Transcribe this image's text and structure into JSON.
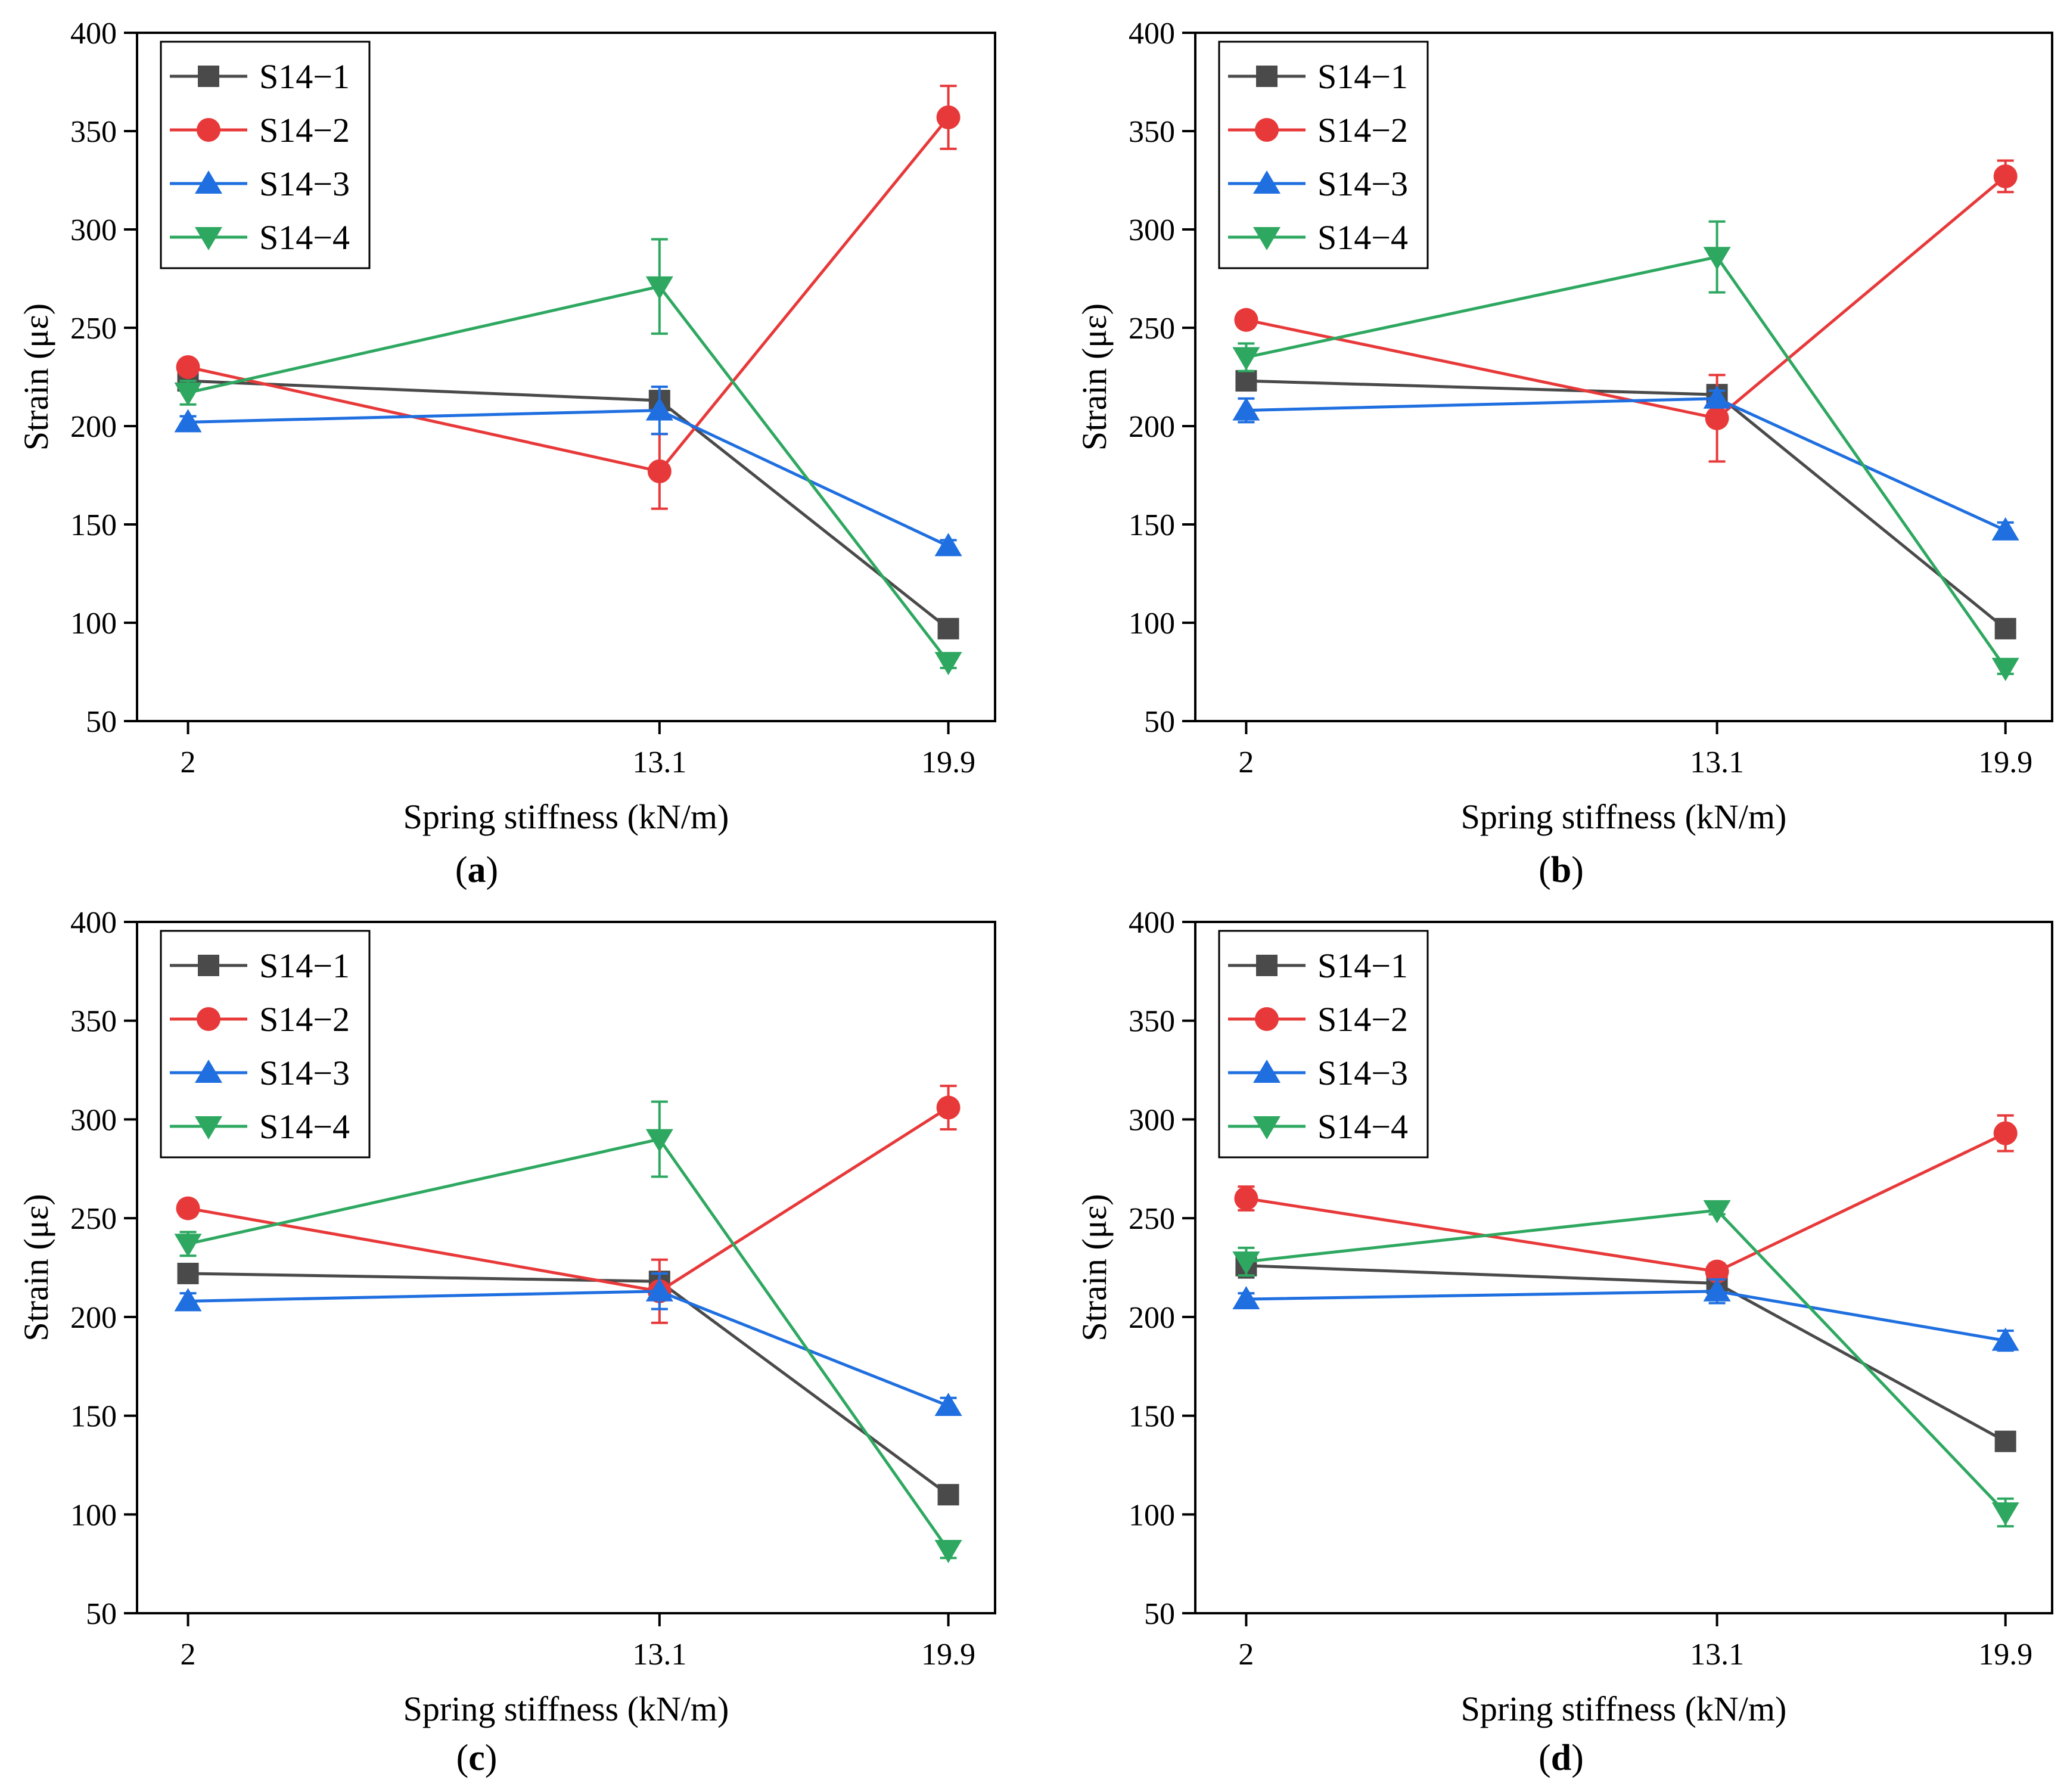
{
  "chart_data": [
    {
      "type": "line",
      "panel_label": "a",
      "title": "",
      "xlabel": "Spring stiffness (kN/m)",
      "ylabel": "Strain (με)",
      "x": [
        2,
        13.1,
        19.9
      ],
      "x_tick_labels": [
        "2",
        "13.1",
        "19.9"
      ],
      "xlim": [
        0.8,
        21.0
      ],
      "ylim": [
        50,
        400
      ],
      "y_ticks": [
        50,
        100,
        150,
        200,
        250,
        300,
        350,
        400
      ],
      "legend_position": "top-left",
      "series": [
        {
          "name": "S14−1",
          "values": [
            223,
            213,
            97
          ],
          "errors": [
            2,
            3,
            3
          ]
        },
        {
          "name": "S14−2",
          "values": [
            230,
            177,
            357
          ],
          "errors": [
            3,
            19,
            16
          ]
        },
        {
          "name": "S14−3",
          "values": [
            202,
            208,
            139
          ],
          "errors": [
            3,
            12,
            3
          ]
        },
        {
          "name": "S14−4",
          "values": [
            217,
            271,
            80
          ],
          "errors": [
            6,
            24,
            3
          ]
        }
      ]
    },
    {
      "type": "line",
      "panel_label": "b",
      "title": "",
      "xlabel": "Spring stiffness (kN/m)",
      "ylabel": "Strain (με)",
      "x": [
        2,
        13.1,
        19.9
      ],
      "x_tick_labels": [
        "2",
        "13.1",
        "19.9"
      ],
      "xlim": [
        0.8,
        21.0
      ],
      "ylim": [
        50,
        400
      ],
      "y_ticks": [
        50,
        100,
        150,
        200,
        250,
        300,
        350,
        400
      ],
      "legend_position": "top-left",
      "series": [
        {
          "name": "S14−1",
          "values": [
            223,
            216,
            97
          ],
          "errors": [
            2,
            4,
            2
          ]
        },
        {
          "name": "S14−2",
          "values": [
            254,
            204,
            327
          ],
          "errors": [
            4,
            22,
            8
          ]
        },
        {
          "name": "S14−3",
          "values": [
            208,
            214,
            147
          ],
          "errors": [
            6,
            4,
            4
          ]
        },
        {
          "name": "S14−4",
          "values": [
            235,
            286,
            77
          ],
          "errors": [
            7,
            18,
            3
          ]
        }
      ]
    },
    {
      "type": "line",
      "panel_label": "c",
      "title": "",
      "xlabel": "Spring stiffness (kN/m)",
      "ylabel": "Strain (με)",
      "x": [
        2,
        13.1,
        19.9
      ],
      "x_tick_labels": [
        "2",
        "13.1",
        "19.9"
      ],
      "xlim": [
        0.8,
        21.0
      ],
      "ylim": [
        50,
        400
      ],
      "y_ticks": [
        50,
        100,
        150,
        200,
        250,
        300,
        350,
        400
      ],
      "legend_position": "top-left",
      "series": [
        {
          "name": "S14−1",
          "values": [
            222,
            218,
            110
          ],
          "errors": [
            2,
            4,
            2
          ]
        },
        {
          "name": "S14−2",
          "values": [
            255,
            213,
            306
          ],
          "errors": [
            4,
            16,
            11
          ]
        },
        {
          "name": "S14−3",
          "values": [
            208,
            213,
            155
          ],
          "errors": [
            4,
            9,
            4
          ]
        },
        {
          "name": "S14−4",
          "values": [
            237,
            290,
            82
          ],
          "errors": [
            6,
            19,
            4
          ]
        }
      ]
    },
    {
      "type": "line",
      "panel_label": "d",
      "title": "",
      "xlabel": "Spring stiffness (kN/m)",
      "ylabel": "Strain (με)",
      "x": [
        2,
        13.1,
        19.9
      ],
      "x_tick_labels": [
        "2",
        "13.1",
        "19.9"
      ],
      "xlim": [
        0.8,
        21.0
      ],
      "ylim": [
        50,
        400
      ],
      "y_ticks": [
        50,
        100,
        150,
        200,
        250,
        300,
        350,
        400
      ],
      "legend_position": "top-left",
      "series": [
        {
          "name": "S14−1",
          "values": [
            226,
            217,
            137
          ],
          "errors": [
            6,
            2,
            2
          ]
        },
        {
          "name": "S14−2",
          "values": [
            260,
            223,
            293
          ],
          "errors": [
            6,
            4,
            9
          ]
        },
        {
          "name": "S14−3",
          "values": [
            209,
            213,
            188
          ],
          "errors": [
            3,
            6,
            5
          ]
        },
        {
          "name": "S14−4",
          "values": [
            228,
            254,
            101
          ],
          "errors": [
            7,
            2,
            7
          ]
        }
      ]
    }
  ],
  "series_colors": [
    "#4a4a4a",
    "#e8393a",
    "#1f6fe0",
    "#2ea860"
  ],
  "series_markers": [
    "square",
    "circle",
    "triangle-up",
    "triangle-down"
  ]
}
